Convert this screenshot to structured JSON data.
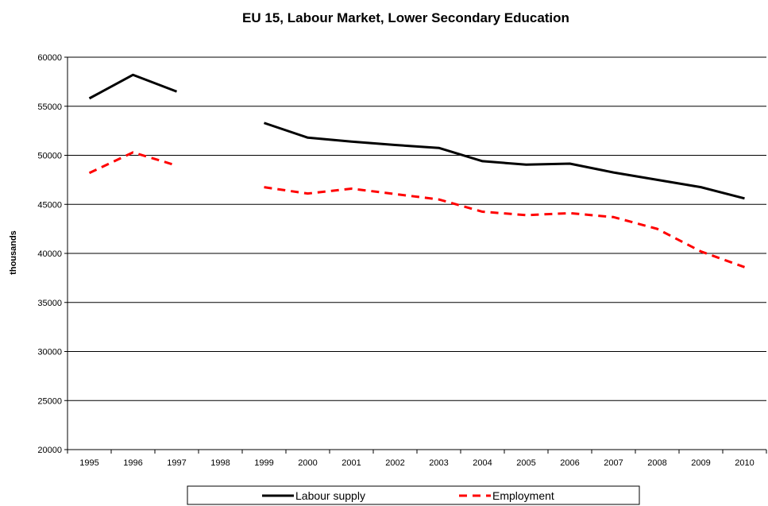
{
  "chart_data": {
    "type": "line",
    "title": "EU 15, Labour Market, Lower Secondary Education",
    "xlabel": "",
    "ylabel": "thousands",
    "categories": [
      "1995",
      "1996",
      "1997",
      "1998",
      "1999",
      "2000",
      "2001",
      "2002",
      "2003",
      "2004",
      "2005",
      "2006",
      "2007",
      "2008",
      "2009",
      "2010"
    ],
    "ylim": [
      20000,
      60000
    ],
    "yticks": [
      20000,
      25000,
      30000,
      35000,
      40000,
      45000,
      50000,
      55000,
      60000
    ],
    "grid": true,
    "legend_position": "bottom",
    "series": [
      {
        "name": "Labour supply",
        "color": "#000000",
        "style": "solid",
        "values": [
          55800,
          58200,
          56500,
          null,
          53300,
          51800,
          51400,
          51050,
          50750,
          49400,
          49050,
          49150,
          48250,
          47500,
          46750,
          45600
        ]
      },
      {
        "name": "Employment",
        "color": "#ff0000",
        "style": "dashed",
        "values": [
          48200,
          50300,
          48950,
          null,
          46750,
          46100,
          46600,
          46050,
          45500,
          44250,
          43900,
          44100,
          43700,
          42500,
          40200,
          38600
        ]
      }
    ]
  }
}
